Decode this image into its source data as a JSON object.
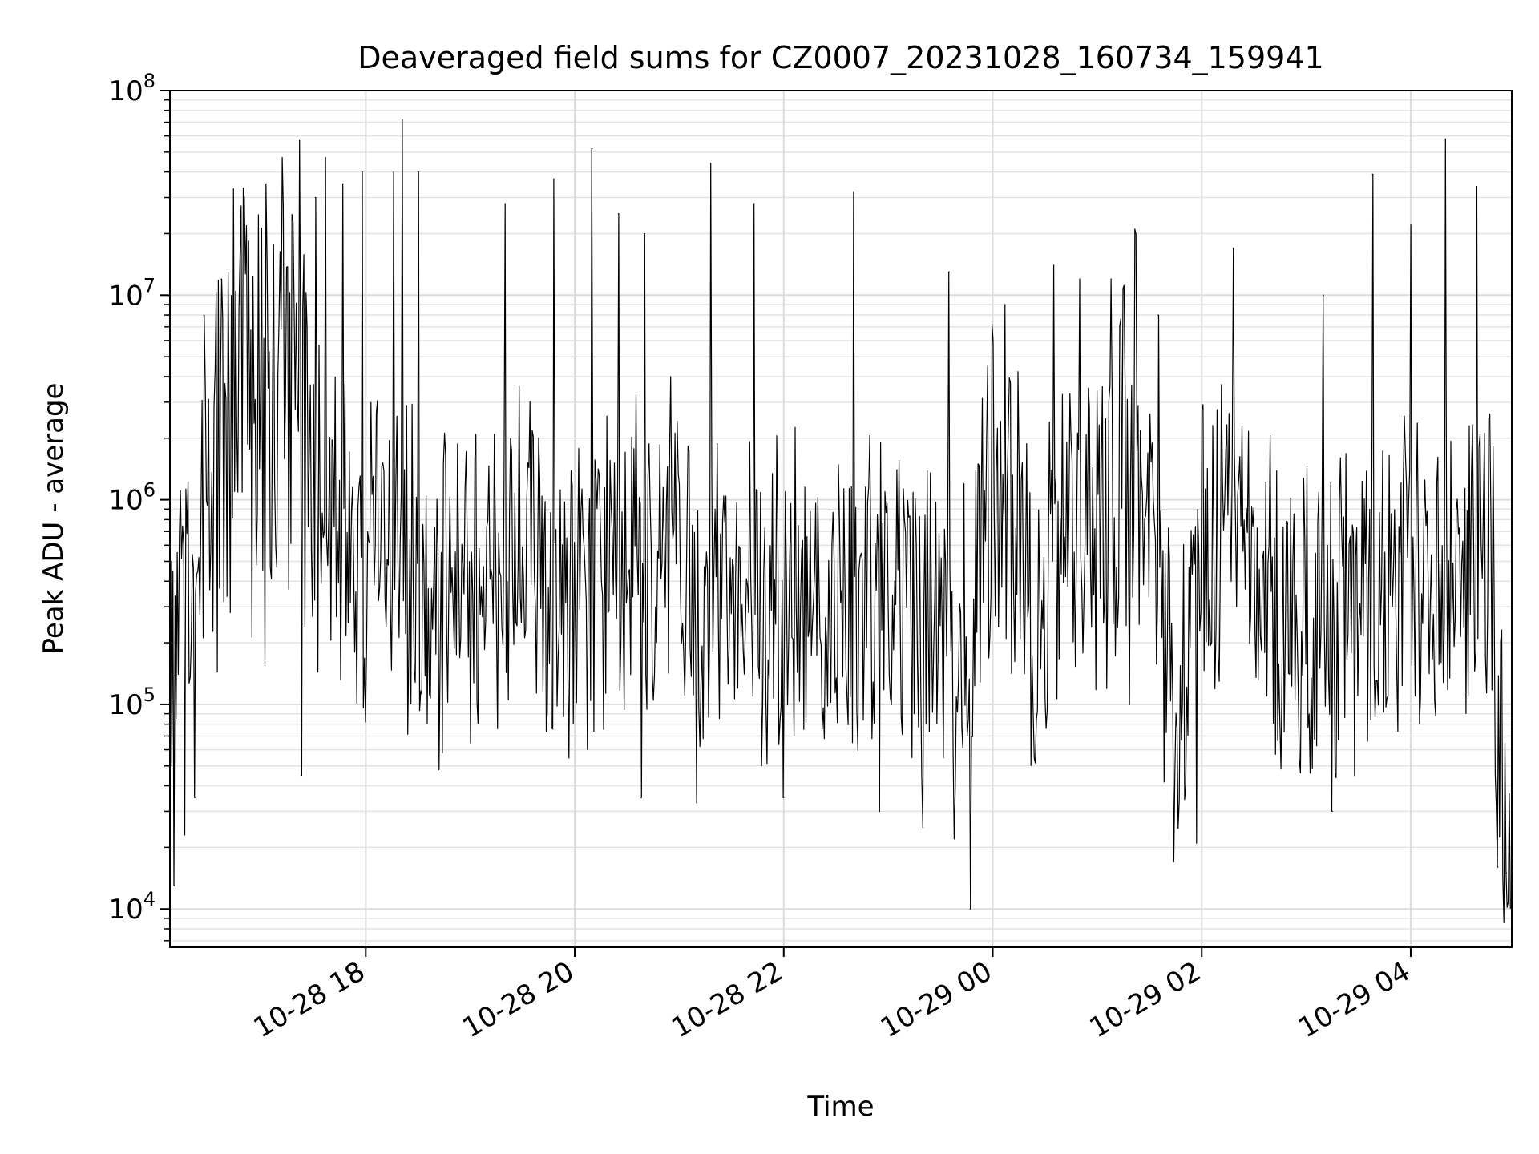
{
  "chart_data": {
    "type": "line",
    "title": "Deaveraged field sums for CZ0007_20231028_160734_159941",
    "xlabel": "Time",
    "ylabel": "Peak ADU - average",
    "yscale": "log",
    "ylim": [
      6500,
      100000000
    ],
    "xlim": [
      "2023-10-28 16:07:34",
      "2023-10-29 04:58:00"
    ],
    "grid": true,
    "line_color": "#000000",
    "y_ticks": [
      {
        "value": 10000,
        "base": "10",
        "exp": "4"
      },
      {
        "value": 100000,
        "base": "10",
        "exp": "5"
      },
      {
        "value": 1000000,
        "base": "10",
        "exp": "6"
      },
      {
        "value": 10000000,
        "base": "10",
        "exp": "7"
      },
      {
        "value": 100000000,
        "base": "10",
        "exp": "8"
      }
    ],
    "x_ticks": [
      {
        "value": "2023-10-28 18:00",
        "label": "10-28 18"
      },
      {
        "value": "2023-10-28 20:00",
        "label": "10-28 20"
      },
      {
        "value": "2023-10-28 22:00",
        "label": "10-28 22"
      },
      {
        "value": "2023-10-29 00:00",
        "label": "10-29 00"
      },
      {
        "value": "2023-10-29 02:00",
        "label": "10-29 02"
      },
      {
        "value": "2023-10-29 04:00",
        "label": "10-29 04"
      }
    ],
    "series": [
      {
        "x": [
          "2023-10-28 16:08",
          "2023-10-28 16:20",
          "2023-10-28 16:30",
          "2023-10-28 16:40",
          "2023-10-28 16:50",
          "2023-10-28 17:00",
          "2023-10-28 17:10",
          "2023-10-28 17:20",
          "2023-10-28 17:30",
          "2023-10-28 17:40",
          "2023-10-28 17:50",
          "2023-10-28 18:00",
          "2023-10-28 18:15",
          "2023-10-28 18:30",
          "2023-10-28 18:45",
          "2023-10-28 19:00",
          "2023-10-28 19:15",
          "2023-10-28 19:30",
          "2023-10-28 19:45",
          "2023-10-28 20:00",
          "2023-10-28 20:15",
          "2023-10-28 20:30",
          "2023-10-28 20:45",
          "2023-10-28 20:55",
          "2023-10-28 21:05",
          "2023-10-28 21:20",
          "2023-10-28 21:40",
          "2023-10-28 22:00",
          "2023-10-28 22:20",
          "2023-10-28 22:40",
          "2023-10-28 23:00",
          "2023-10-28 23:20",
          "2023-10-28 23:35",
          "2023-10-28 23:45",
          "2023-10-29 00:00",
          "2023-10-29 00:10",
          "2023-10-29 00:25",
          "2023-10-29 00:40",
          "2023-10-29 01:00",
          "2023-10-29 01:15",
          "2023-10-29 01:25",
          "2023-10-29 01:40",
          "2023-10-29 01:50",
          "2023-10-29 02:00",
          "2023-10-29 02:20",
          "2023-10-29 02:35",
          "2023-10-29 02:50",
          "2023-10-29 03:00",
          "2023-10-29 03:15",
          "2023-10-29 03:30",
          "2023-10-29 03:45",
          "2023-10-29 04:00",
          "2023-10-29 04:15",
          "2023-10-29 04:30",
          "2023-10-29 04:40",
          "2023-10-29 04:47",
          "2023-10-29 04:52",
          "2023-10-29 04:57"
        ],
        "y": [
          150000,
          600000,
          900000,
          1500000,
          2500000,
          2200000,
          3000000,
          2500000,
          1200000,
          700000,
          600000,
          500000,
          600000,
          400000,
          350000,
          400000,
          380000,
          600000,
          420000,
          400000,
          380000,
          450000,
          400000,
          900000,
          300000,
          350000,
          300000,
          330000,
          350000,
          300000,
          300000,
          280000,
          250000,
          150000,
          1500000,
          1200000,
          250000,
          600000,
          800000,
          1500000,
          1300000,
          180000,
          150000,
          450000,
          900000,
          350000,
          280000,
          250000,
          300000,
          320000,
          400000,
          380000,
          400000,
          450000,
          550000,
          600000,
          30000,
          25000
        ],
        "spikes_up": [
          [
            "2023-10-28 16:27",
            8000000
          ],
          [
            "2023-10-28 16:37",
            12000000
          ],
          [
            "2023-10-28 16:44",
            33000000
          ],
          [
            "2023-10-28 16:50",
            30000000
          ],
          [
            "2023-10-28 17:03",
            35000000
          ],
          [
            "2023-10-28 17:12",
            47000000
          ],
          [
            "2023-10-28 17:22",
            57000000
          ],
          [
            "2023-10-28 17:31",
            30000000
          ],
          [
            "2023-10-28 17:37",
            47000000
          ],
          [
            "2023-10-28 17:47",
            35000000
          ],
          [
            "2023-10-28 17:58",
            40000000
          ],
          [
            "2023-10-28 18:16",
            40000000
          ],
          [
            "2023-10-28 18:21",
            72000000
          ],
          [
            "2023-10-28 18:30",
            40000000
          ],
          [
            "2023-10-28 19:20",
            28000000
          ],
          [
            "2023-10-28 19:48",
            37000000
          ],
          [
            "2023-10-28 20:10",
            52000000
          ],
          [
            "2023-10-28 20:25",
            25000000
          ],
          [
            "2023-10-28 20:40",
            20000000
          ],
          [
            "2023-10-28 21:18",
            44000000
          ],
          [
            "2023-10-28 21:43",
            28000000
          ],
          [
            "2023-10-28 22:40",
            32000000
          ],
          [
            "2023-10-28 23:35",
            13000000
          ],
          [
            "2023-10-29 00:00",
            6000000
          ],
          [
            "2023-10-29 00:35",
            14000000
          ],
          [
            "2023-10-29 00:50",
            12000000
          ],
          [
            "2023-10-29 01:08",
            12000000
          ],
          [
            "2023-10-29 01:35",
            8000000
          ],
          [
            "2023-10-29 02:18",
            17000000
          ],
          [
            "2023-10-29 03:10",
            10000000
          ],
          [
            "2023-10-29 03:38",
            39000000
          ],
          [
            "2023-10-29 04:00",
            22000000
          ],
          [
            "2023-10-29 04:20",
            58000000
          ],
          [
            "2023-10-29 04:38",
            34000000
          ],
          [
            "2023-10-29 04:45",
            2500000
          ]
        ],
        "spikes_down": [
          [
            "2023-10-28 16:10",
            13000
          ],
          [
            "2023-10-28 16:16",
            23000
          ],
          [
            "2023-10-28 16:22",
            35000
          ],
          [
            "2023-10-28 17:23",
            45000
          ],
          [
            "2023-10-28 18:42",
            48000
          ],
          [
            "2023-10-28 20:38",
            35000
          ],
          [
            "2023-10-28 21:10",
            33000
          ],
          [
            "2023-10-28 22:00",
            35000
          ],
          [
            "2023-10-28 22:55",
            30000
          ],
          [
            "2023-10-28 23:20",
            25000
          ],
          [
            "2023-10-28 23:38",
            22000
          ],
          [
            "2023-10-28 23:47",
            10000
          ],
          [
            "2023-10-29 01:44",
            17000
          ],
          [
            "2023-10-29 01:57",
            21000
          ],
          [
            "2023-10-29 03:15",
            30000
          ],
          [
            "2023-10-29 04:50",
            16000
          ],
          [
            "2023-10-29 04:55",
            15000
          ]
        ]
      }
    ]
  }
}
